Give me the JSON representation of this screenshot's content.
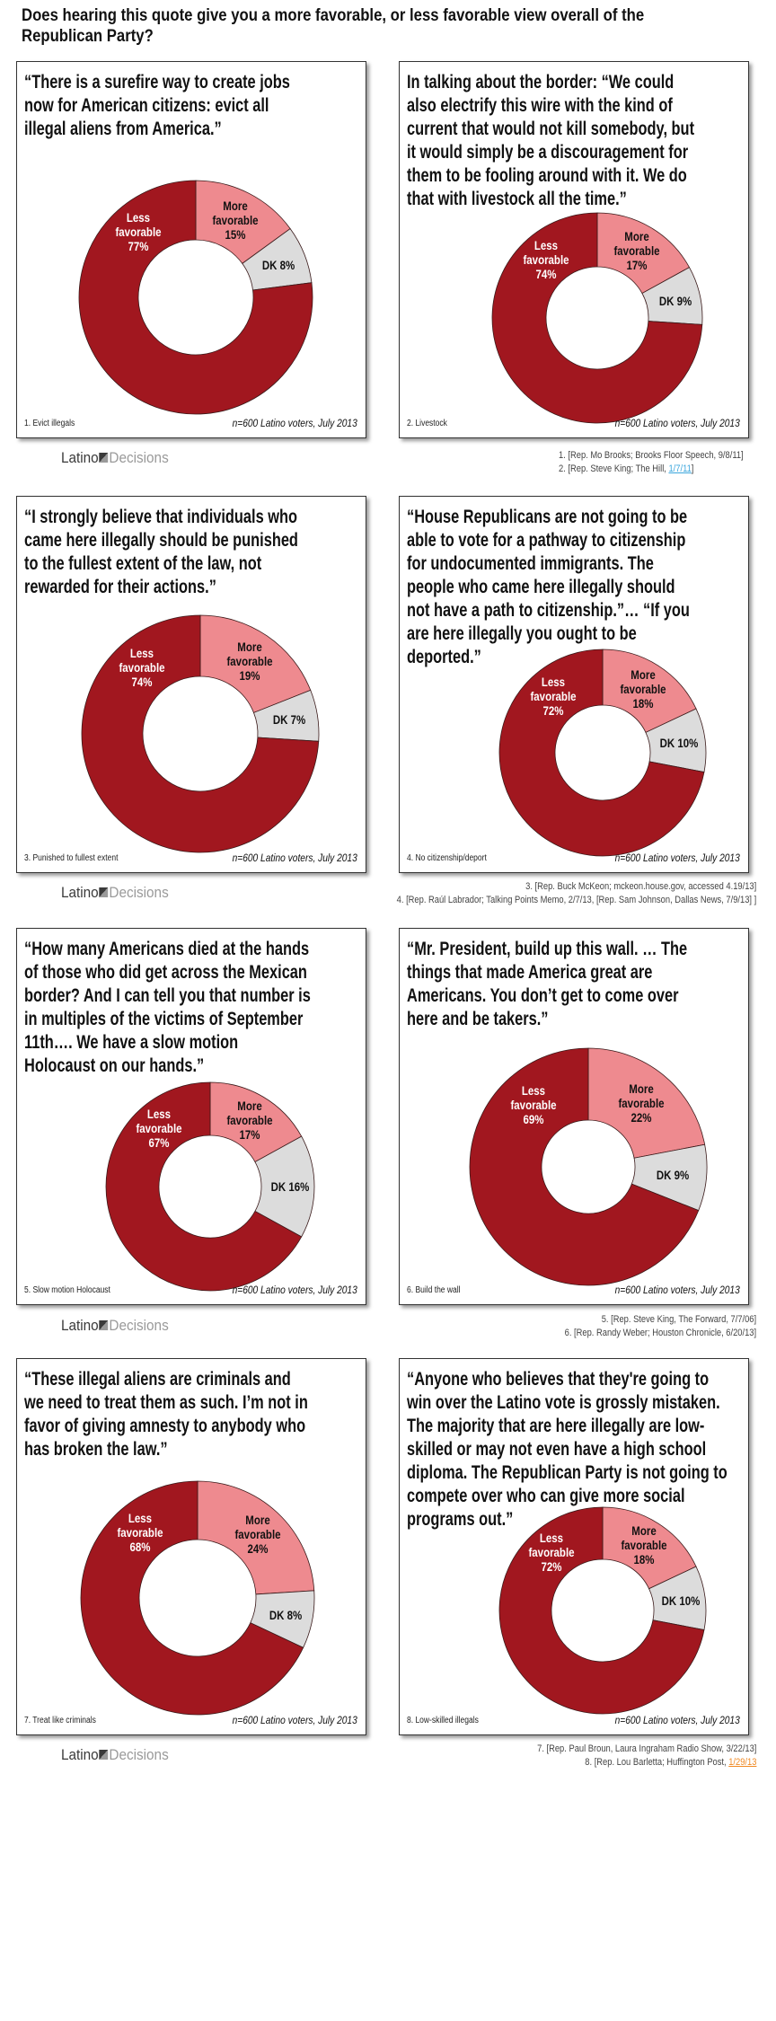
{
  "title": "Does hearing this quote give you a more favorable, or less favorable view overall of the Republican Party?",
  "colors": {
    "less": "#A1171F",
    "more": "#EE8A8F",
    "dk": "#DCDCDC",
    "stroke": "#3a1a1a"
  },
  "logo": {
    "part1": "Latino",
    "part2": "Decisions"
  },
  "sample_note": "n=600 Latino voters, July 2013",
  "chart_data": [
    {
      "type": "pie",
      "caption": "1. Evict illegals",
      "quote_lines": [
        "“There is a surefire way to create jobs",
        "now for American citizens: evict all",
        "illegal aliens from America.”"
      ],
      "slices": [
        {
          "label": "More favorable",
          "value": 15,
          "text": "15%"
        },
        {
          "label": "DK",
          "value": 8,
          "text": "8%"
        },
        {
          "label": "Less favorable",
          "value": 77,
          "text": "77%"
        }
      ]
    },
    {
      "type": "pie",
      "caption": "2. Livestock",
      "quote_lines": [
        "In talking about the border: “We could",
        "also electrify this wire with the kind of",
        "current that would not kill somebody, but",
        "it would simply be a discouragement for",
        "them to be fooling around with it. We do",
        "that with livestock all the time.”"
      ],
      "slices": [
        {
          "label": "More favorable",
          "value": 17,
          "text": "17%"
        },
        {
          "label": "DK",
          "value": 9,
          "text": "9%"
        },
        {
          "label": "Less favorable",
          "value": 74,
          "text": "74%"
        }
      ]
    },
    {
      "type": "pie",
      "caption": "3. Punished to fullest extent",
      "quote_lines": [
        "“I strongly believe that individuals who",
        "came here illegally should be punished",
        "to the fullest extent of the law, not",
        "rewarded for their actions.”"
      ],
      "slices": [
        {
          "label": "More favorable",
          "value": 19,
          "text": "19%"
        },
        {
          "label": "DK",
          "value": 7,
          "text": "7%"
        },
        {
          "label": "Less favorable",
          "value": 74,
          "text": "74%"
        }
      ]
    },
    {
      "type": "pie",
      "caption": "4.  No citizenship/deport",
      "quote_lines": [
        "“House Republicans are not going to be",
        "able to vote for a pathway to citizenship",
        "for undocumented immigrants. The",
        "people who came here illegally should",
        "not have a path to citizenship.”… “If you",
        "are here illegally you ought to be",
        "deported.”"
      ],
      "slices": [
        {
          "label": "More favorable",
          "value": 18,
          "text": "18%"
        },
        {
          "label": "DK",
          "value": 10,
          "text": "10%"
        },
        {
          "label": "Less favorable",
          "value": 72,
          "text": "72%"
        }
      ]
    },
    {
      "type": "pie",
      "caption": "5. Slow motion Holocaust",
      "quote_lines": [
        "“How many Americans died at the hands",
        "of those who did get across the Mexican",
        "border? And I can tell you that number is",
        "in multiples of the victims of September",
        "11th…. We have a slow motion",
        "Holocaust on our hands.”"
      ],
      "slices": [
        {
          "label": "More favorable",
          "value": 17,
          "text": "17%"
        },
        {
          "label": "DK",
          "value": 16,
          "text": "16%"
        },
        {
          "label": "Less favorable",
          "value": 67,
          "text": "67%"
        }
      ]
    },
    {
      "type": "pie",
      "caption": "6. Build the wall",
      "quote_lines": [
        "“Mr. President, build up this wall. … The",
        "things that made America great are",
        "Americans. You don’t get to come over",
        "here and be takers.”"
      ],
      "slices": [
        {
          "label": "More favorable",
          "value": 22,
          "text": "22%"
        },
        {
          "label": "DK",
          "value": 9,
          "text": "9%"
        },
        {
          "label": "Less favorable",
          "value": 69,
          "text": "69%"
        }
      ]
    },
    {
      "type": "pie",
      "caption": "7. Treat like criminals",
      "quote_lines": [
        "“These illegal aliens are criminals and",
        "we need to treat them as such. I’m not in",
        "favor of giving amnesty to anybody who",
        "has broken the law.”"
      ],
      "slices": [
        {
          "label": "More favorable",
          "value": 24,
          "text": "24%"
        },
        {
          "label": "DK",
          "value": 8,
          "text": "8%"
        },
        {
          "label": "Less favorable",
          "value": 68,
          "text": "68%"
        }
      ]
    },
    {
      "type": "pie",
      "caption": "8. Low-skilled illegals",
      "quote_lines": [
        "“Anyone who believes that they're going to",
        "win over the Latino vote is grossly mistaken.",
        "The majority that are here illegally are low-",
        "skilled or may not even have a high school",
        "diploma. The Republican Party is not going to",
        "compete over who can give more social",
        "programs out.”"
      ],
      "slices": [
        {
          "label": "More favorable",
          "value": 18,
          "text": "18%"
        },
        {
          "label": "DK",
          "value": 10,
          "text": "10%"
        },
        {
          "label": "Less favorable",
          "value": 72,
          "text": "72%"
        }
      ]
    }
  ],
  "footnotes": [
    [
      {
        "text": "1.     [Rep. Mo Brooks; Brooks Floor Speech, 9/8/11]"
      },
      {
        "text": "2.     [Rep. Steve King; The Hill, ",
        "link": "1/7/11",
        "after": "]",
        "link_color": "blue"
      }
    ],
    [
      {
        "text": "3. [Rep. Buck McKeon; mckeon.house.gov,  accessed  4.19/13]"
      },
      {
        "text": "4. [Rep. Raúl Labrador; Talking  Points  Memo, 2/7/13, [Rep. Sam Johnson, Dallas News, 7/9/13] ]"
      }
    ],
    [
      {
        "text": "5. [Rep. Steve King, The Forward, 7/7/06]"
      },
      {
        "text": "6. [Rep. Randy Weber; Houston Chronicle, 6/20/13]"
      }
    ],
    [
      {
        "text": "7. [Rep. Paul Broun, Laura Ingraham Radio Show, 3/22/13]"
      },
      {
        "text": "8. [Rep. Lou Barletta;  Huffington  Post, ",
        "link": "1/29/13",
        "after": "",
        "link_color": "orange"
      }
    ]
  ]
}
